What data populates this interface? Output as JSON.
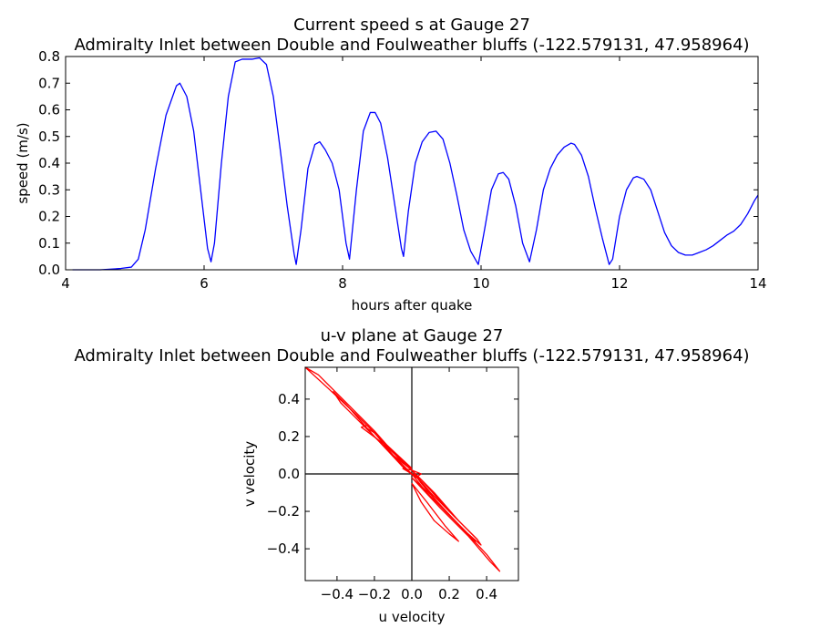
{
  "chart_data": [
    {
      "type": "line",
      "title_line1": "Current speed s at Gauge 27",
      "title_line2": "Admiralty Inlet between Double and Foulweather bluffs  (-122.579131, 47.958964)",
      "xlabel": "hours after quake",
      "ylabel": "speed (m/s)",
      "xlim": [
        4,
        14
      ],
      "ylim": [
        0,
        0.8
      ],
      "xticks": [
        "4",
        "6",
        "8",
        "10",
        "12",
        "14"
      ],
      "yticks": [
        "0.0",
        "0.1",
        "0.2",
        "0.3",
        "0.4",
        "0.5",
        "0.6",
        "0.7",
        "0.8"
      ],
      "grid": false,
      "series": [
        {
          "color": "#0000ff",
          "x": [
            4.1,
            4.5,
            4.8,
            4.95,
            5.05,
            5.15,
            5.3,
            5.45,
            5.6,
            5.65,
            5.75,
            5.85,
            5.95,
            6.05,
            6.1,
            6.15,
            6.25,
            6.35,
            6.45,
            6.55,
            6.7,
            6.8,
            6.9,
            7.0,
            7.1,
            7.2,
            7.3,
            7.33,
            7.4,
            7.5,
            7.6,
            7.67,
            7.75,
            7.85,
            7.95,
            8.05,
            8.1,
            8.2,
            8.3,
            8.4,
            8.47,
            8.55,
            8.65,
            8.75,
            8.85,
            8.88,
            8.95,
            9.05,
            9.15,
            9.25,
            9.35,
            9.45,
            9.55,
            9.65,
            9.75,
            9.85,
            9.96,
            10.05,
            10.15,
            10.25,
            10.32,
            10.4,
            10.5,
            10.6,
            10.7,
            10.8,
            10.9,
            11.0,
            11.1,
            11.2,
            11.3,
            11.35,
            11.45,
            11.55,
            11.65,
            11.75,
            11.85,
            11.9,
            12.0,
            12.1,
            12.2,
            12.25,
            12.35,
            12.45,
            12.55,
            12.65,
            12.75,
            12.85,
            12.95,
            13.05,
            13.15,
            13.25,
            13.35,
            13.45,
            13.55,
            13.65,
            13.75,
            13.85,
            13.95,
            14.0
          ],
          "y": [
            0.0,
            0.0,
            0.005,
            0.01,
            0.04,
            0.15,
            0.38,
            0.58,
            0.69,
            0.7,
            0.65,
            0.52,
            0.3,
            0.08,
            0.03,
            0.1,
            0.4,
            0.65,
            0.78,
            0.79,
            0.79,
            0.795,
            0.77,
            0.65,
            0.45,
            0.24,
            0.06,
            0.02,
            0.15,
            0.38,
            0.47,
            0.48,
            0.45,
            0.4,
            0.3,
            0.1,
            0.04,
            0.3,
            0.52,
            0.59,
            0.59,
            0.55,
            0.42,
            0.25,
            0.08,
            0.05,
            0.22,
            0.4,
            0.48,
            0.515,
            0.52,
            0.49,
            0.4,
            0.28,
            0.15,
            0.07,
            0.02,
            0.15,
            0.3,
            0.36,
            0.365,
            0.34,
            0.24,
            0.1,
            0.03,
            0.15,
            0.3,
            0.38,
            0.43,
            0.46,
            0.475,
            0.47,
            0.43,
            0.35,
            0.23,
            0.12,
            0.02,
            0.04,
            0.2,
            0.3,
            0.345,
            0.35,
            0.34,
            0.3,
            0.22,
            0.14,
            0.09,
            0.065,
            0.055,
            0.055,
            0.065,
            0.075,
            0.09,
            0.11,
            0.13,
            0.145,
            0.17,
            0.21,
            0.26,
            0.28
          ]
        }
      ]
    },
    {
      "type": "line",
      "title_line1": "u-v plane at Gauge 27",
      "title_line2": "Admiralty Inlet between Double and Foulweather bluffs  (-122.579131, 47.958964)",
      "xlabel": "u velocity",
      "ylabel": "v velocity",
      "xlim": [
        -0.57,
        0.57
      ],
      "ylim": [
        -0.57,
        0.57
      ],
      "xticks": [
        "−0.4",
        "−0.2",
        "0.0",
        "0.2",
        "0.4"
      ],
      "yticks": [
        "−0.4",
        "−0.2",
        "0.0",
        "0.2",
        "0.4"
      ],
      "xtick_values": [
        -0.4,
        -0.2,
        0.0,
        0.2,
        0.4
      ],
      "ytick_values": [
        -0.4,
        -0.2,
        0.0,
        0.2,
        0.4
      ],
      "axis_lines_at_zero": true,
      "grid": false,
      "series": [
        {
          "color": "#ff0000",
          "loops": [
            {
              "u": [
                0.0,
                -0.15,
                -0.3,
                -0.45,
                -0.57,
                -0.5,
                -0.35,
                -0.2,
                -0.05,
                0.0
              ],
              "v": [
                0.03,
                0.17,
                0.32,
                0.46,
                0.57,
                0.53,
                0.38,
                0.23,
                0.06,
                0.03
              ]
            },
            {
              "u": [
                0.0,
                -0.2,
                -0.38,
                -0.42,
                -0.35,
                -0.2,
                -0.05,
                0.0
              ],
              "v": [
                0.0,
                0.2,
                0.38,
                0.44,
                0.37,
                0.2,
                0.04,
                0.0
              ]
            },
            {
              "u": [
                0.0,
                -0.15,
                -0.27,
                -0.24,
                -0.1,
                0.0
              ],
              "v": [
                0.02,
                0.16,
                0.25,
                0.26,
                0.12,
                0.02
              ]
            },
            {
              "u": [
                0.0,
                0.15,
                0.3,
                0.42,
                0.47,
                0.4,
                0.25,
                0.1,
                0.0
              ],
              "v": [
                -0.02,
                -0.18,
                -0.33,
                -0.47,
                -0.52,
                -0.43,
                -0.27,
                -0.11,
                -0.02
              ]
            },
            {
              "u": [
                0.0,
                0.1,
                0.25,
                0.35,
                0.37,
                0.3,
                0.18,
                0.05,
                0.0
              ],
              "v": [
                0.02,
                -0.1,
                -0.25,
                -0.35,
                -0.38,
                -0.32,
                -0.2,
                -0.05,
                0.02
              ]
            },
            {
              "u": [
                -0.05,
                0.05,
                0.2,
                0.33,
                0.35,
                0.25,
                0.12,
                0.0,
                -0.05
              ],
              "v": [
                0.03,
                -0.03,
                -0.2,
                -0.33,
                -0.35,
                -0.25,
                -0.1,
                0.02,
                0.03
              ]
            },
            {
              "u": [
                -0.25,
                -0.15,
                -0.05,
                0.02,
                0.05,
                0.0,
                -0.1,
                -0.2,
                -0.25
              ],
              "v": [
                0.25,
                0.15,
                0.04,
                -0.02,
                0.0,
                0.02,
                0.1,
                0.22,
                0.25
              ]
            },
            {
              "u": [
                0.0,
                0.08,
                0.2,
                0.3,
                0.34,
                0.28,
                0.15,
                0.04,
                0.0
              ],
              "v": [
                0.0,
                -0.1,
                -0.22,
                -0.32,
                -0.36,
                -0.3,
                -0.17,
                -0.03,
                0.0
              ]
            },
            {
              "u": [
                0.0,
                0.05,
                0.12,
                0.2,
                0.25,
                0.18,
                0.08,
                0.0
              ],
              "v": [
                -0.05,
                -0.15,
                -0.25,
                -0.32,
                -0.36,
                -0.28,
                -0.15,
                -0.05
              ]
            }
          ]
        }
      ]
    }
  ]
}
